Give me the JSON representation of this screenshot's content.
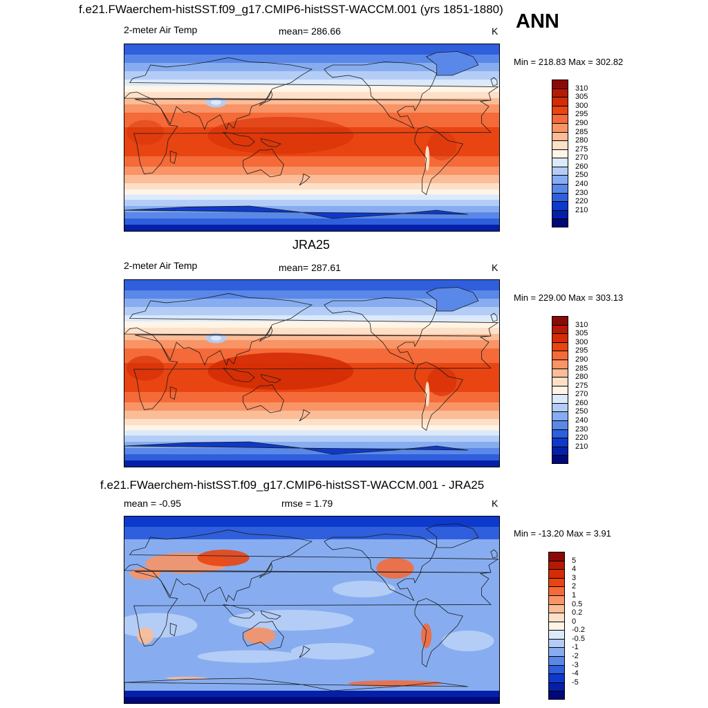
{
  "header": {
    "title": "f.e21.FWaerchem-histSST.f09_g17.CMIP6-histSST-WACCM.001 (yrs 1851-1880)",
    "season": "ANN"
  },
  "panels": [
    {
      "heading": "",
      "left_label": "2-meter Air Temp",
      "center_label": "mean= 286.66",
      "units": "K",
      "minmax": "Min = 218.83 Max = 302.82",
      "variant": "model"
    },
    {
      "heading": "JRA25",
      "left_label": "2-meter Air Temp",
      "center_label": "mean= 287.61",
      "units": "K",
      "minmax": "Min = 229.00 Max = 303.13",
      "variant": "obs"
    },
    {
      "heading": "f.e21.FWaerchem-histSST.f09_g17.CMIP6-histSST-WACCM.001 - JRA25",
      "left_label": "mean =  -0.95",
      "center_label": "rmse =   1.79",
      "units": "K",
      "minmax": "Min = -13.20 Max =   3.91",
      "variant": "diff"
    }
  ],
  "colorbar_abs": {
    "labels": [
      "310",
      "305",
      "300",
      "295",
      "290",
      "285",
      "280",
      "275",
      "270",
      "260",
      "250",
      "240",
      "230",
      "220",
      "210"
    ],
    "colors": [
      "#8b0a07",
      "#b51a05",
      "#d42c04",
      "#e84512",
      "#f46a38",
      "#f89466",
      "#fbbc98",
      "#fde0c8",
      "#fff4e6",
      "#dbe9fb",
      "#b3cdf6",
      "#87adf0",
      "#5a88e8",
      "#2f5fdc",
      "#0d3acc",
      "#0520a8",
      "#00087a"
    ]
  },
  "colorbar_diff": {
    "labels": [
      "5",
      "4",
      "3",
      "2",
      "1",
      "0.5",
      "0.2",
      "0",
      "-0.2",
      "-0.5",
      "-1",
      "-2",
      "-3",
      "-4",
      "-5"
    ],
    "colors": [
      "#8b0a07",
      "#b51a05",
      "#d42c04",
      "#e84512",
      "#f46a38",
      "#f89466",
      "#fbbc98",
      "#fde0c8",
      "#fff4e6",
      "#dbe9fb",
      "#b3cdf6",
      "#87adf0",
      "#5a88e8",
      "#2f5fdc",
      "#0d3acc",
      "#0520a8",
      "#00087a"
    ]
  }
}
